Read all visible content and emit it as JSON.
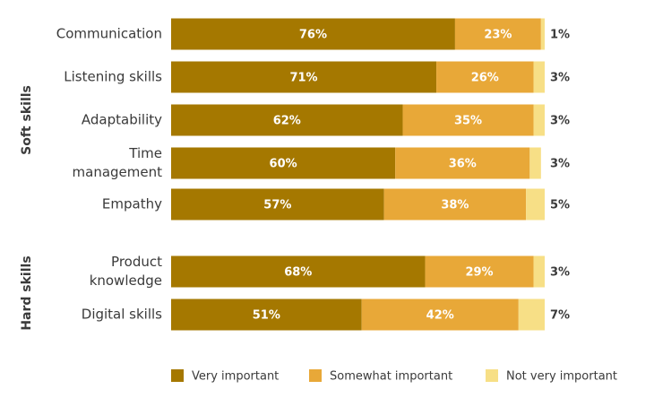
{
  "chart_data": {
    "type": "bar",
    "orientation": "horizontal",
    "stacked": true,
    "xlim": [
      0,
      100
    ],
    "unit": "%",
    "groups": [
      {
        "name": "Soft skills",
        "categories": [
          [
            "Communication"
          ],
          [
            "Listening skills"
          ],
          [
            "Adaptability"
          ],
          [
            "Time",
            "management"
          ],
          [
            "Empathy"
          ]
        ],
        "series": [
          {
            "name": "Very important",
            "values": [
              76,
              71,
              62,
              60,
              57
            ]
          },
          {
            "name": "Somewhat important",
            "values": [
              23,
              26,
              35,
              36,
              38
            ]
          },
          {
            "name": "Not very important",
            "values": [
              1,
              3,
              3,
              3,
              5
            ]
          }
        ]
      },
      {
        "name": "Hard skills",
        "categories": [
          [
            "Product",
            "knowledge"
          ],
          [
            "Digital skills"
          ]
        ],
        "series": [
          {
            "name": "Very important",
            "values": [
              68,
              51
            ]
          },
          {
            "name": "Somewhat important",
            "values": [
              29,
              42
            ]
          },
          {
            "name": "Not very important",
            "values": [
              3,
              7
            ]
          }
        ]
      }
    ],
    "legend": {
      "placement": "bottom",
      "entries": [
        "Very important",
        "Somewhat important",
        "Not very important"
      ]
    },
    "colors": [
      "#a57800",
      "#e8a838",
      "#f7df86"
    ],
    "grid": false
  }
}
